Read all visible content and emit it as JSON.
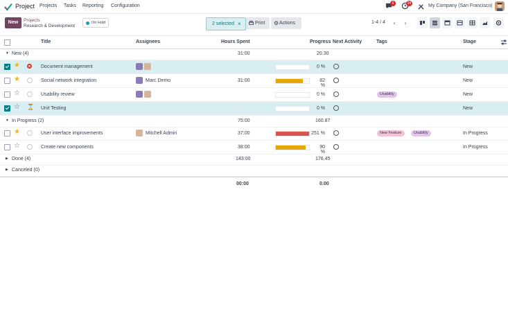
{
  "topbar": {
    "app_name": "Project",
    "menu": [
      "Projects",
      "Tasks",
      "Reporting",
      "Configuration"
    ],
    "messages_count": "6",
    "activities_count": "34",
    "company": "My Company (San Francisco)"
  },
  "control": {
    "new_label": "New",
    "breadcrumb_parent": "Projects",
    "breadcrumb_current": "Research & Development",
    "status_label": "On Hold",
    "selected_label": "2 selected",
    "print_label": "Print",
    "actions_label": "Actions",
    "pager": "1-4 / 4"
  },
  "columns": {
    "title": "Title",
    "assignees": "Assignees",
    "hours": "Hours Spent",
    "progress": "Progress",
    "next_activity": "Next Activity",
    "tags": "Tags",
    "stage": "Stage"
  },
  "groups": {
    "new": {
      "label": "New (4)",
      "hours": "31:00",
      "progress": "20.30"
    },
    "in_progress": {
      "label": "In Progress (2)",
      "hours": "75:00",
      "progress": "160.87"
    },
    "done": {
      "label": "Done (4)",
      "hours": "143:00",
      "progress": "176.45"
    },
    "canceled": {
      "label": "Canceled (0)"
    }
  },
  "rows": [
    {
      "title": "Document management",
      "assignee": "",
      "hours": "",
      "progress_text": "0 %",
      "progress_value": 0,
      "tags": [],
      "stage": "New"
    },
    {
      "title": "Social network integration",
      "assignee": "Marc Demo",
      "hours": "31:00",
      "progress_text": "82 %",
      "progress_value": 82,
      "tags": [],
      "stage": "New"
    },
    {
      "title": "Usability review",
      "assignee": "",
      "hours": "",
      "progress_text": "0 %",
      "progress_value": 0,
      "tags": [
        "Usability"
      ],
      "stage": "New"
    },
    {
      "title": "Unit Testing",
      "assignee": "",
      "hours": "",
      "progress_text": "0 %",
      "progress_value": 0,
      "tags": [],
      "stage": "New"
    },
    {
      "title": "User interface improvements",
      "assignee": "Mitchell Admin",
      "hours": "37:00",
      "progress_text": "251 %",
      "progress_value": 100,
      "tags": [
        "New Feature",
        "Usability"
      ],
      "stage": "In Progress"
    },
    {
      "title": "Create new components",
      "assignee": "",
      "hours": "38:00",
      "progress_text": "90 %",
      "progress_value": 90,
      "tags": [],
      "stage": "In Progress"
    }
  ],
  "totals": {
    "hours": "00:00",
    "progress": "0.00"
  },
  "colors": {
    "brand": "#71455f",
    "accent": "#017e84",
    "progress_ok": "#e5a800",
    "progress_over": "#d9534f",
    "tag_pink": "#f5c2d6",
    "tag_purple": "#e3c4e8"
  }
}
